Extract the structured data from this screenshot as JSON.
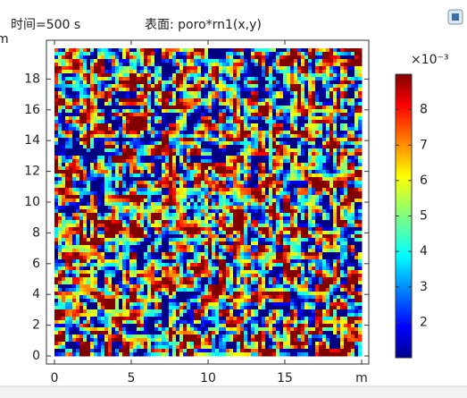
{
  "chart_data": {
    "type": "heatmap",
    "title": "表面: poro*rn1(x,y)",
    "subtitle": "时间=500 s",
    "xlabel": "m",
    "ylabel": "m",
    "xlim": [
      0,
      20
    ],
    "ylim": [
      0,
      20
    ],
    "xticks": [
      0,
      5,
      10,
      15
    ],
    "yticks": [
      0,
      2,
      4,
      6,
      8,
      10,
      12,
      14,
      16,
      18
    ],
    "colormap": "jet",
    "colorbar": {
      "multiplier": "×10⁻³",
      "lim": [
        1,
        9
      ],
      "ticks": [
        2,
        3,
        4,
        5,
        6,
        7,
        8
      ]
    }
  }
}
